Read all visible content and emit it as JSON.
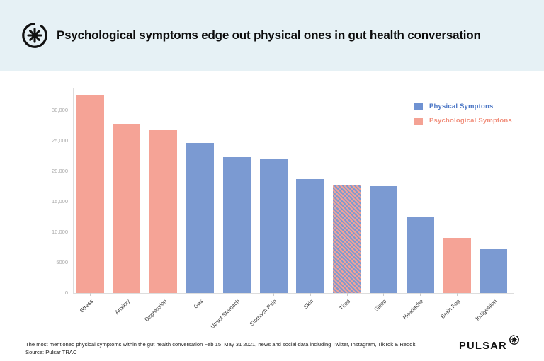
{
  "header": {
    "title": "Psychological symptoms edge out physical ones in gut health conversation"
  },
  "legend": {
    "physical": {
      "label": "Physical Symptons",
      "swatch_color": "#6f92d2",
      "text_color": "#4b76c5"
    },
    "psychological": {
      "label": "Psychological Symptons",
      "swatch_color": "#f4a294",
      "text_color": "#f18e7b"
    }
  },
  "chart_data": {
    "type": "bar",
    "categories": [
      "Stress",
      "Anxiety",
      "Depression",
      "Gas",
      "Upset Stomach",
      "Stomach Pain",
      "Skin",
      "Tired",
      "Sleep",
      "Headache",
      "Brain Fog",
      "Indigestion"
    ],
    "bars": [
      {
        "label": "Stress",
        "value": 32500,
        "group": "psychological"
      },
      {
        "label": "Anxiety",
        "value": 27800,
        "group": "psychological"
      },
      {
        "label": "Depression",
        "value": 26900,
        "group": "psychological"
      },
      {
        "label": "Gas",
        "value": 24700,
        "group": "physical"
      },
      {
        "label": "Upset Stomach",
        "value": 22300,
        "group": "physical"
      },
      {
        "label": "Stomach Pain",
        "value": 22000,
        "group": "physical"
      },
      {
        "label": "Skin",
        "value": 18700,
        "group": "physical"
      },
      {
        "label": "Tired",
        "value": 17800,
        "group": "both"
      },
      {
        "label": "Sleep",
        "value": 17500,
        "group": "physical"
      },
      {
        "label": "Headache",
        "value": 12500,
        "group": "physical"
      },
      {
        "label": "Brain Fog",
        "value": 9100,
        "group": "psychological"
      },
      {
        "label": "Indigestion",
        "value": 7200,
        "group": "physical"
      }
    ],
    "ylim": [
      0,
      33600
    ],
    "y_ticks": [
      {
        "value": 0,
        "label": "0"
      },
      {
        "value": 5000,
        "label": "5000"
      },
      {
        "value": 10000,
        "label": "10,000"
      },
      {
        "value": 15000,
        "label": "15,000"
      },
      {
        "value": 20000,
        "label": "20,000"
      },
      {
        "value": 25000,
        "label": "25,000"
      },
      {
        "value": 30000,
        "label": "30,000"
      }
    ],
    "grid": false,
    "legend_position": "top-right"
  },
  "footer": {
    "caption": "The most mentioned physical symptoms within the gut health conversation Feb 15–May 31 2021, news and social data including Twitter, Instagram, TikTok & Reddit.",
    "source": "Source: Pulsar TRAC",
    "brand": "PULSAR"
  },
  "colors": {
    "header_bg": "#e6f1f5",
    "bar_physical": "#7b9ad2",
    "bar_psychological": "#f5a396",
    "axis_line": "#dddddd",
    "y_tick_text": "#a8a8a8",
    "x_label_text": "#3c3c3c",
    "footer_text": "#212121"
  }
}
